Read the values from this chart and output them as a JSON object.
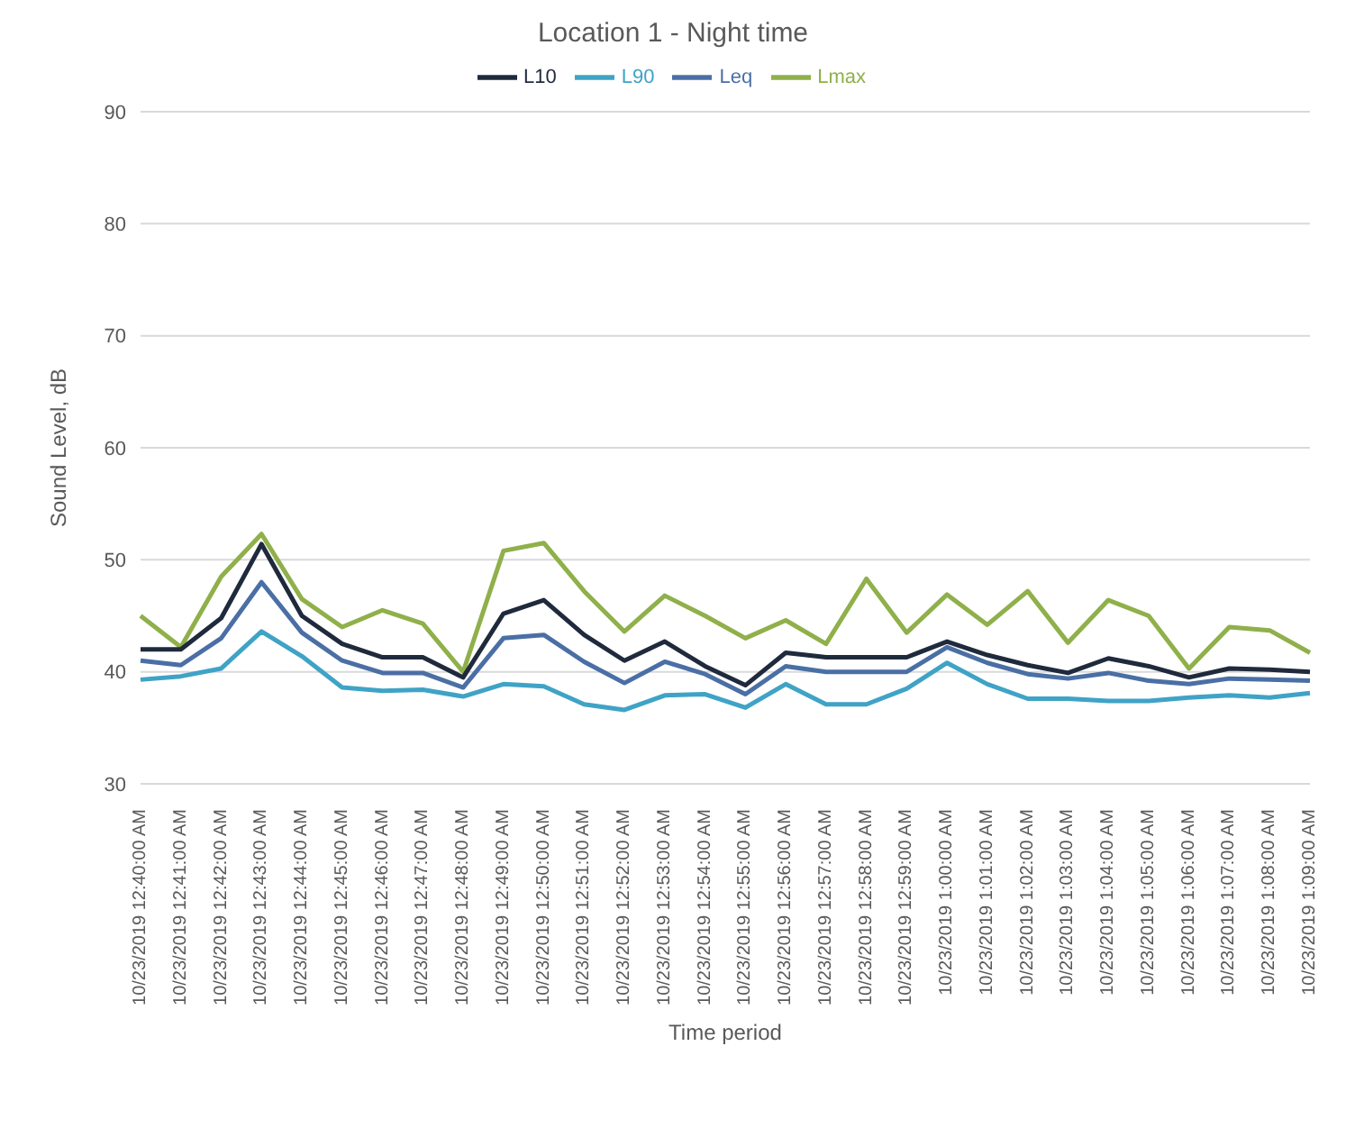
{
  "chart_data": {
    "type": "line",
    "title": "Location 1 - Night time",
    "xlabel": "Time period",
    "ylabel": "Sound Level, dB",
    "categories": [
      "10/23/2019 12:40:00 AM",
      "10/23/2019 12:41:00 AM",
      "10/23/2019 12:42:00 AM",
      "10/23/2019 12:43:00 AM",
      "10/23/2019 12:44:00 AM",
      "10/23/2019 12:45:00 AM",
      "10/23/2019 12:46:00 AM",
      "10/23/2019 12:47:00 AM",
      "10/23/2019 12:48:00 AM",
      "10/23/2019 12:49:00 AM",
      "10/23/2019 12:50:00 AM",
      "10/23/2019 12:51:00 AM",
      "10/23/2019 12:52:00 AM",
      "10/23/2019 12:53:00 AM",
      "10/23/2019 12:54:00 AM",
      "10/23/2019 12:55:00 AM",
      "10/23/2019 12:56:00 AM",
      "10/23/2019 12:57:00 AM",
      "10/23/2019 12:58:00 AM",
      "10/23/2019 12:59:00 AM",
      "10/23/2019 1:00:00 AM",
      "10/23/2019 1:01:00 AM",
      "10/23/2019 1:02:00 AM",
      "10/23/2019 1:03:00 AM",
      "10/23/2019 1:04:00 AM",
      "10/23/2019 1:05:00 AM",
      "10/23/2019 1:06:00 AM",
      "10/23/2019 1:07:00 AM",
      "10/23/2019 1:08:00 AM",
      "10/23/2019 1:09:00 AM"
    ],
    "series": [
      {
        "name": "Leq",
        "color": "#4a6fa5",
        "values": [
          41,
          40.6,
          43,
          48,
          43.5,
          41,
          39.9,
          39.9,
          38.6,
          43,
          43.3,
          40.9,
          39,
          40.9,
          39.8,
          38,
          40.5,
          40,
          40,
          40,
          42.2,
          40.8,
          39.8,
          39.4,
          39.9,
          39.2,
          38.9,
          39.4,
          39.3,
          39.2
        ]
      },
      {
        "name": "Lmax",
        "color": "#8fb04a",
        "values": [
          45,
          42.2,
          48.5,
          52.3,
          46.5,
          44,
          45.5,
          44.3,
          40,
          50.8,
          51.5,
          47.2,
          43.6,
          46.8,
          45,
          43,
          44.6,
          42.5,
          48.3,
          43.5,
          46.9,
          44.2,
          47.2,
          42.6,
          46.4,
          45,
          40.3,
          44,
          43.7,
          41.7
        ]
      },
      {
        "name": "L90",
        "color": "#3fa3c6",
        "values": [
          39.3,
          39.6,
          40.3,
          43.6,
          41.4,
          38.6,
          38.3,
          38.4,
          37.8,
          38.9,
          38.7,
          37.1,
          36.6,
          37.9,
          38,
          36.8,
          38.9,
          37.1,
          37.1,
          38.5,
          40.8,
          38.9,
          37.6,
          37.6,
          37.4,
          37.4,
          37.7,
          37.9,
          37.7,
          38.1
        ]
      },
      {
        "name": "L10",
        "color": "#1f2a3c",
        "values": [
          42,
          42,
          44.8,
          51.4,
          45,
          42.5,
          41.3,
          41.3,
          39.5,
          45.2,
          46.4,
          43.3,
          41,
          42.7,
          40.5,
          38.8,
          41.7,
          41.3,
          41.3,
          41.3,
          42.7,
          41.5,
          40.6,
          39.9,
          41.2,
          40.5,
          39.5,
          40.3,
          40.2,
          40
        ]
      }
    ],
    "ylim": [
      30,
      90
    ],
    "yticks": [
      30,
      40,
      50,
      60,
      70,
      80,
      90
    ],
    "grid": "y",
    "legend": "top",
    "marker": "none",
    "line_style": "solid"
  }
}
